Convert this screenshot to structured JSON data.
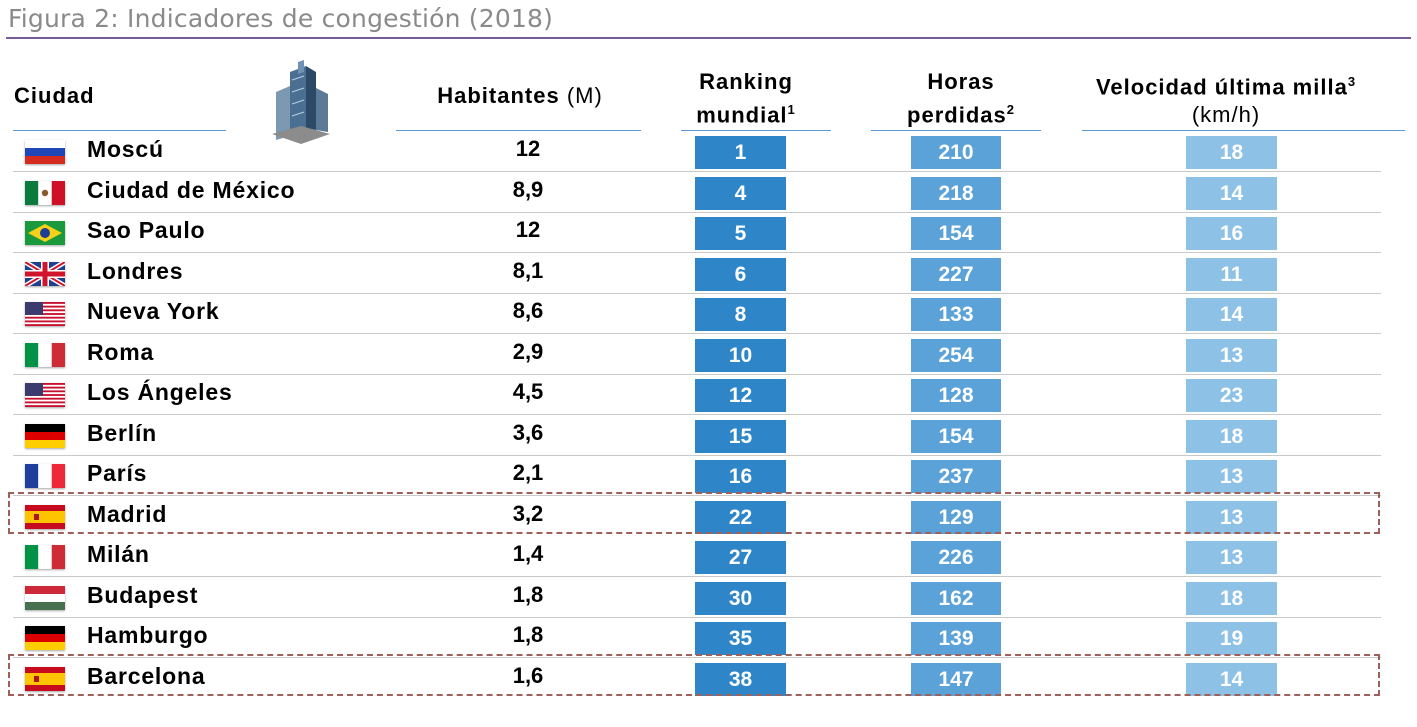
{
  "figure_title": "Figura 2: Indicadores de congestión (2018)",
  "headers": {
    "city": "Ciudad",
    "population": "Habitantes",
    "population_unit": "(M)",
    "ranking_line1": "Ranking",
    "ranking_line2": "mundial",
    "ranking_sup": "1",
    "hours_line1": "Horas",
    "hours_line2": "perdidas",
    "hours_sup": "2",
    "speed_line1": "Velocidad última milla",
    "speed_sup": "3",
    "speed_unit": "(km/h)"
  },
  "colors": {
    "ranking": "#2e86c9",
    "hours": "#5aa2d8",
    "speed": "#8ec1e6",
    "title_rule": "#7a5c9a",
    "highlight_border": "#a0605a"
  },
  "rows": [
    {
      "flag": "russia-flag",
      "city": "Moscú",
      "population": "12",
      "ranking": "1",
      "hours": "210",
      "speed": "18",
      "highlight": false
    },
    {
      "flag": "mexico-flag",
      "city": "Ciudad de México",
      "population": "8,9",
      "ranking": "4",
      "hours": "218",
      "speed": "14",
      "highlight": false
    },
    {
      "flag": "brazil-flag",
      "city": "Sao Paulo",
      "population": "12",
      "ranking": "5",
      "hours": "154",
      "speed": "16",
      "highlight": false
    },
    {
      "flag": "uk-flag",
      "city": "Londres",
      "population": "8,1",
      "ranking": "6",
      "hours": "227",
      "speed": "11",
      "highlight": false
    },
    {
      "flag": "usa-flag",
      "city": "Nueva York",
      "population": "8,6",
      "ranking": "8",
      "hours": "133",
      "speed": "14",
      "highlight": false
    },
    {
      "flag": "italy-flag",
      "city": "Roma",
      "population": "2,9",
      "ranking": "10",
      "hours": "254",
      "speed": "13",
      "highlight": false
    },
    {
      "flag": "usa-flag",
      "city": "Los Ángeles",
      "population": "4,5",
      "ranking": "12",
      "hours": "128",
      "speed": "23",
      "highlight": false
    },
    {
      "flag": "germany-flag",
      "city": "Berlín",
      "population": "3,6",
      "ranking": "15",
      "hours": "154",
      "speed": "18",
      "highlight": false
    },
    {
      "flag": "france-flag",
      "city": "París",
      "population": "2,1",
      "ranking": "16",
      "hours": "237",
      "speed": "13",
      "highlight": false
    },
    {
      "flag": "spain-flag",
      "city": "Madrid",
      "population": "3,2",
      "ranking": "22",
      "hours": "129",
      "speed": "13",
      "highlight": true
    },
    {
      "flag": "italy-flag",
      "city": "Milán",
      "population": "1,4",
      "ranking": "27",
      "hours": "226",
      "speed": "13",
      "highlight": false
    },
    {
      "flag": "hungary-flag",
      "city": "Budapest",
      "population": "1,8",
      "ranking": "30",
      "hours": "162",
      "speed": "18",
      "highlight": false
    },
    {
      "flag": "germany-flag",
      "city": "Hamburgo",
      "population": "1,8",
      "ranking": "35",
      "hours": "139",
      "speed": "19",
      "highlight": false
    },
    {
      "flag": "spain-flag",
      "city": "Barcelona",
      "population": "1,6",
      "ranking": "38",
      "hours": "147",
      "speed": "14",
      "highlight": true
    }
  ]
}
